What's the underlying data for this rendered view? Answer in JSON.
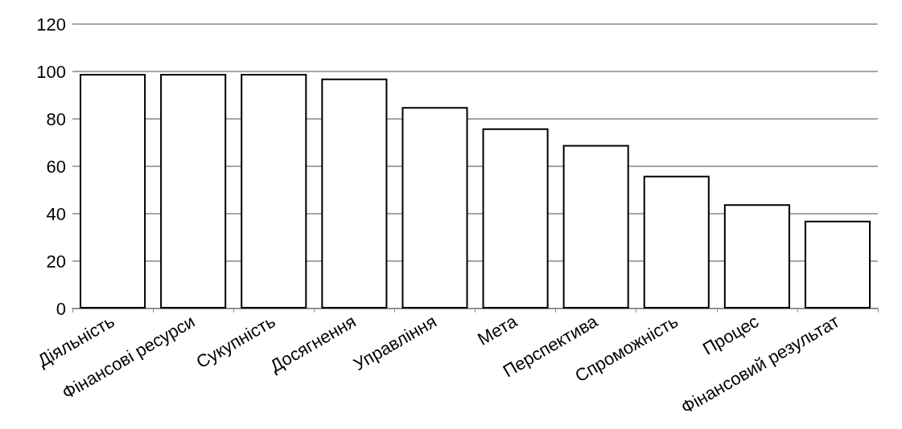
{
  "chart_data": {
    "type": "bar",
    "categories": [
      "Діяльність",
      "Фінансові ресурси",
      "Сукупність",
      "Досягнення",
      "Управління",
      "Мета",
      "Перспектива",
      "Спроможність",
      "Процес",
      "Фінансовий результат"
    ],
    "values": [
      99,
      99,
      99,
      97,
      85,
      76,
      69,
      56,
      44,
      37
    ],
    "color": "#ffffff",
    "ylim": [
      0,
      120
    ],
    "yticks": [
      0,
      20,
      40,
      60,
      80,
      100,
      120
    ],
    "grid": "y"
  }
}
